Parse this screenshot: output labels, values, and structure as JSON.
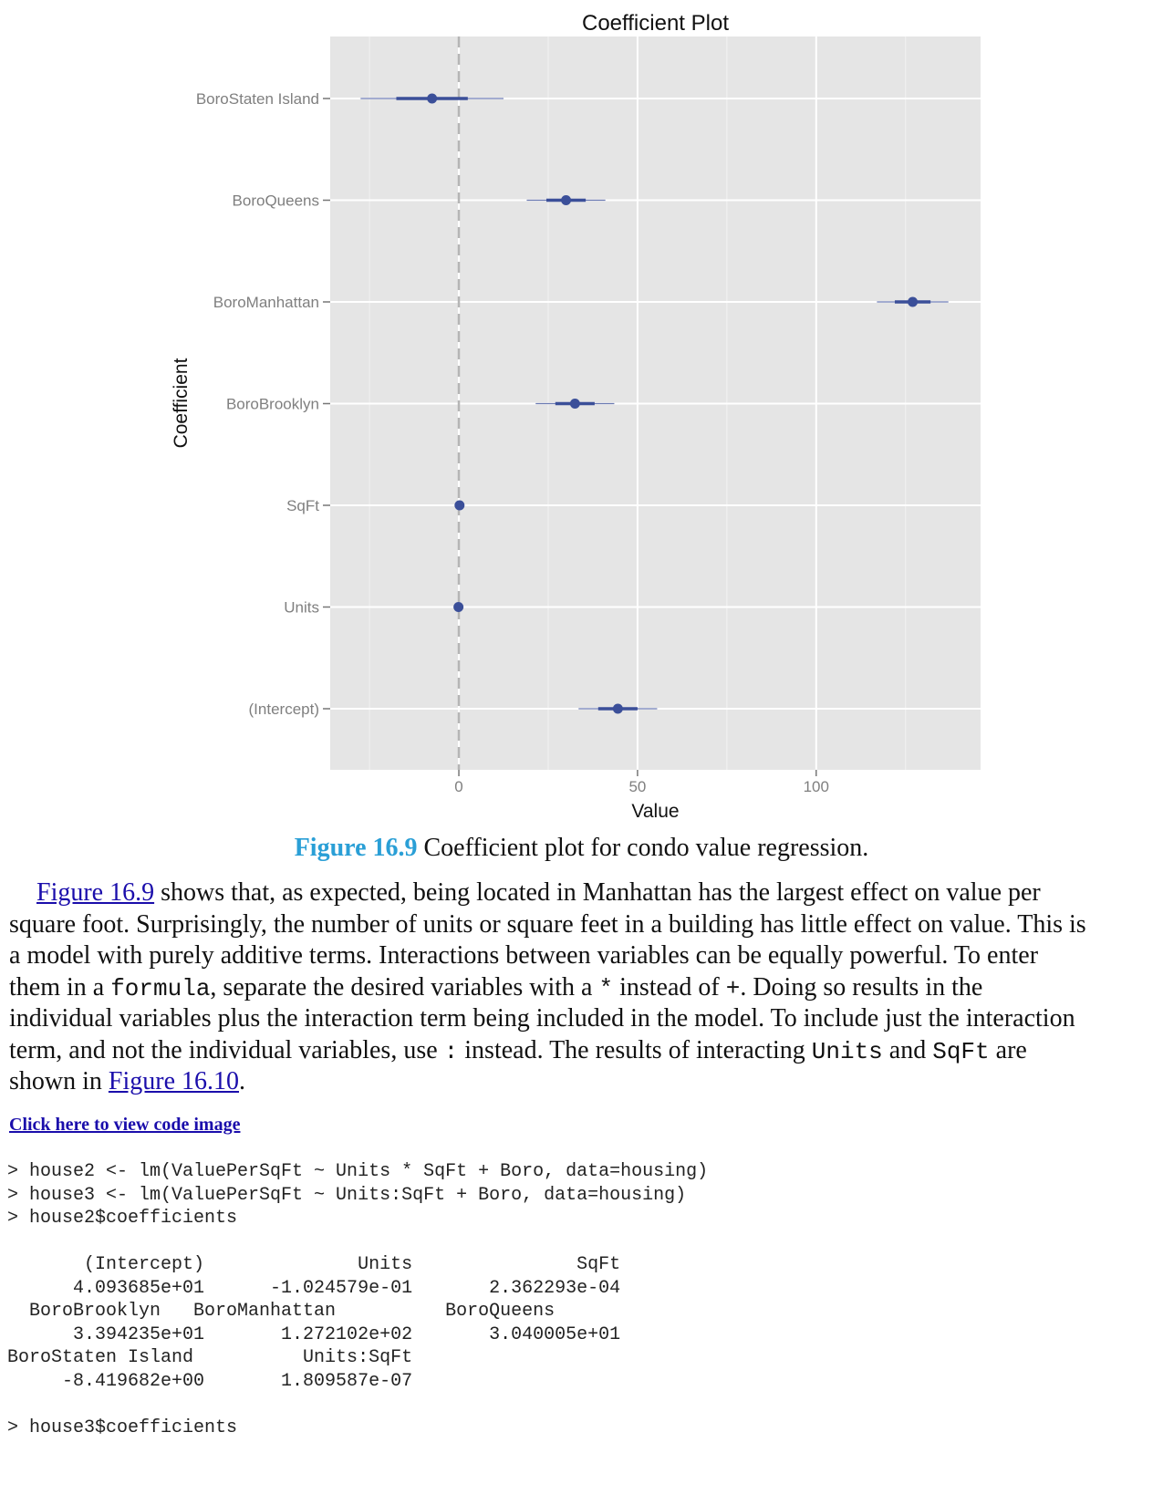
{
  "chart_data": {
    "type": "scatter",
    "title": "Coefficient Plot",
    "xlabel": "Value",
    "ylabel": "Coefficient",
    "xlim": [
      -36,
      146
    ],
    "x_ticks": [
      0,
      50,
      100
    ],
    "x_tick_labels": [
      "0",
      "50",
      "100"
    ],
    "grid": true,
    "reference_line": 0,
    "point_color": "#3b4f99",
    "panel_color": "#e5e5e5",
    "categories": [
      "BoroStaten Island",
      "BoroQueens",
      "BoroManhattan",
      "BoroBrooklyn",
      "SqFt",
      "Units",
      "(Intercept)"
    ],
    "series": [
      {
        "estimate": [
          -7.5,
          30,
          127,
          32.5,
          0.2,
          -0.1,
          44.5
        ],
        "inner_low": [
          -17.5,
          24.5,
          122,
          27,
          0.1,
          -0.2,
          39
        ],
        "inner_high": [
          2.5,
          35.5,
          132,
          38,
          0.3,
          0,
          50
        ],
        "outer_low": [
          -27.5,
          19,
          117,
          21.5,
          0,
          -0.3,
          33.5
        ],
        "outer_high": [
          12.5,
          41,
          137,
          43.5,
          0.4,
          0.1,
          55.5
        ]
      }
    ]
  },
  "caption": {
    "label": "Figure 16.9",
    "text": " Coefficient plot for condo value regression."
  },
  "paragraph": {
    "l1_link": "Figure 16.9",
    "l1_rest": " shows that, as expected, being located in Manhattan has the largest effect on value per",
    "l2": "square foot. Surprisingly, the number of units or square feet in a building has little effect on value. This is",
    "l3": "a model with purely additive terms. Interactions between variables can be equally powerful. To enter",
    "l4a": "them in a ",
    "l4_code1": "formula",
    "l4b": ", separate the desired variables with a ",
    "l4_code2": "*",
    "l4c": " instead of ",
    "l4_code3": "+",
    "l4d": ". Doing so results in the",
    "l5": "individual variables plus the interaction term being included in the model. To include just the interaction",
    "l6a": "term, and not the individual variables, use ",
    "l6_code1": ":",
    "l6b": " instead. The results of interacting ",
    "l6_code2": "Units",
    "l6c": " and ",
    "l6_code3": "SqFt",
    "l6d": " are",
    "l7a": "shown in ",
    "l7_link": "Figure 16.10",
    "l7b": "."
  },
  "code_link": "Click here to view code image",
  "code_lines": [
    "> house2 <- lm(ValuePerSqFt ~ Units * SqFt + Boro, data=housing)",
    "> house3 <- lm(ValuePerSqFt ~ Units:SqFt + Boro, data=housing)",
    "> house2$coefficients",
    "",
    "       (Intercept)              Units               SqFt",
    "      4.093685e+01      -1.024579e-01       2.362293e-04",
    "  BoroBrooklyn   BoroManhattan          BoroQueens",
    "      3.394235e+01       1.272102e+02       3.040005e+01",
    "BoroStaten Island          Units:SqFt",
    "     -8.419682e+00       1.809587e-07",
    "",
    "> house3$coefficients"
  ]
}
